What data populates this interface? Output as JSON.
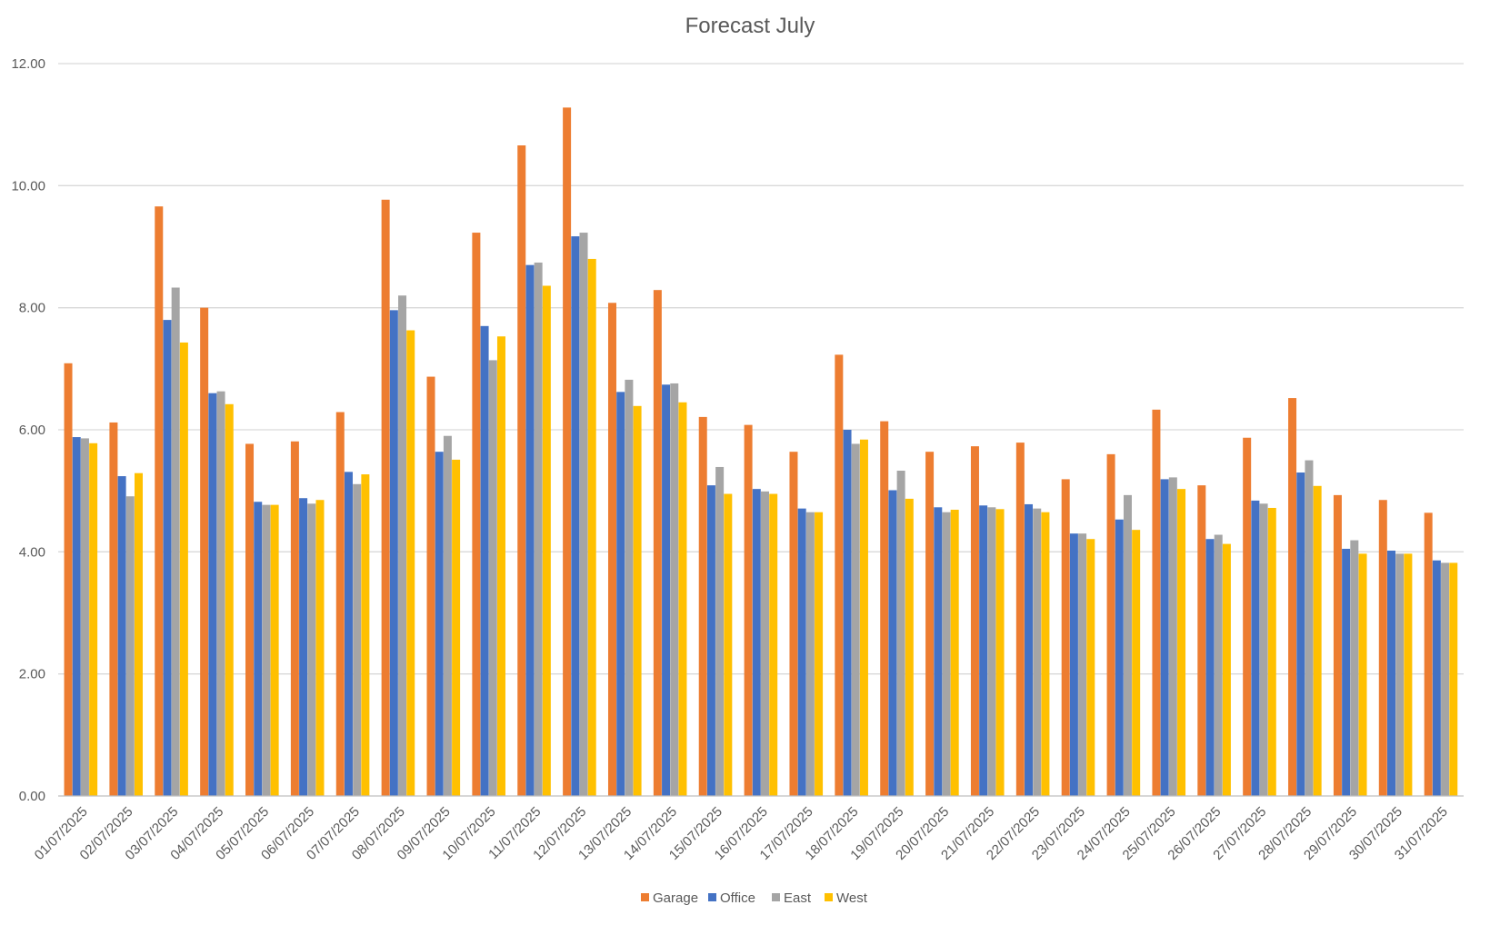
{
  "chart_data": {
    "type": "bar",
    "title": "Forecast July",
    "xlabel": "",
    "ylabel": "",
    "ylim": [
      0,
      12
    ],
    "yticks": [
      "0.00",
      "2.00",
      "4.00",
      "6.00",
      "8.00",
      "10.00",
      "12.00"
    ],
    "grid": true,
    "legend_position": "bottom",
    "categories": [
      "01/07/2025",
      "02/07/2025",
      "03/07/2025",
      "04/07/2025",
      "05/07/2025",
      "06/07/2025",
      "07/07/2025",
      "08/07/2025",
      "09/07/2025",
      "10/07/2025",
      "11/07/2025",
      "12/07/2025",
      "13/07/2025",
      "14/07/2025",
      "15/07/2025",
      "16/07/2025",
      "17/07/2025",
      "18/07/2025",
      "19/07/2025",
      "20/07/2025",
      "21/07/2025",
      "22/07/2025",
      "23/07/2025",
      "24/07/2025",
      "25/07/2025",
      "26/07/2025",
      "27/07/2025",
      "28/07/2025",
      "29/07/2025",
      "30/07/2025",
      "31/07/2025"
    ],
    "series": [
      {
        "name": "Garage",
        "color": "#ED7D31",
        "values": [
          7.09,
          6.12,
          9.66,
          8.0,
          5.77,
          5.81,
          6.29,
          9.77,
          6.87,
          9.23,
          10.66,
          11.28,
          8.08,
          8.29,
          6.21,
          6.08,
          5.64,
          7.23,
          6.14,
          5.64,
          5.73,
          5.79,
          5.19,
          5.6,
          6.33,
          5.09,
          5.87,
          6.52,
          4.93,
          4.85,
          4.64
        ]
      },
      {
        "name": "Office",
        "color": "#4472C4",
        "values": [
          5.88,
          5.24,
          7.8,
          6.6,
          4.82,
          4.88,
          5.31,
          7.96,
          5.64,
          7.7,
          8.7,
          9.17,
          6.62,
          6.74,
          5.09,
          5.03,
          4.71,
          6.0,
          5.01,
          4.73,
          4.76,
          4.78,
          4.3,
          4.53,
          5.19,
          4.21,
          4.84,
          5.3,
          4.05,
          4.02,
          3.86
        ]
      },
      {
        "name": "East",
        "color": "#A5A5A5",
        "values": [
          5.86,
          4.91,
          8.33,
          6.63,
          4.77,
          4.79,
          5.11,
          8.2,
          5.9,
          7.14,
          8.74,
          9.23,
          6.82,
          6.76,
          5.39,
          4.99,
          4.65,
          5.77,
          5.33,
          4.65,
          4.73,
          4.71,
          4.3,
          4.93,
          5.22,
          4.28,
          4.79,
          5.5,
          4.19,
          3.97,
          3.82
        ]
      },
      {
        "name": "West",
        "color": "#FFC000",
        "values": [
          5.78,
          5.29,
          7.43,
          6.42,
          4.77,
          4.85,
          5.27,
          7.63,
          5.51,
          7.53,
          8.36,
          8.8,
          6.39,
          6.45,
          4.95,
          4.95,
          4.65,
          5.84,
          4.87,
          4.69,
          4.7,
          4.65,
          4.21,
          4.36,
          5.03,
          4.13,
          4.72,
          5.08,
          3.97,
          3.97,
          3.82
        ]
      }
    ]
  }
}
